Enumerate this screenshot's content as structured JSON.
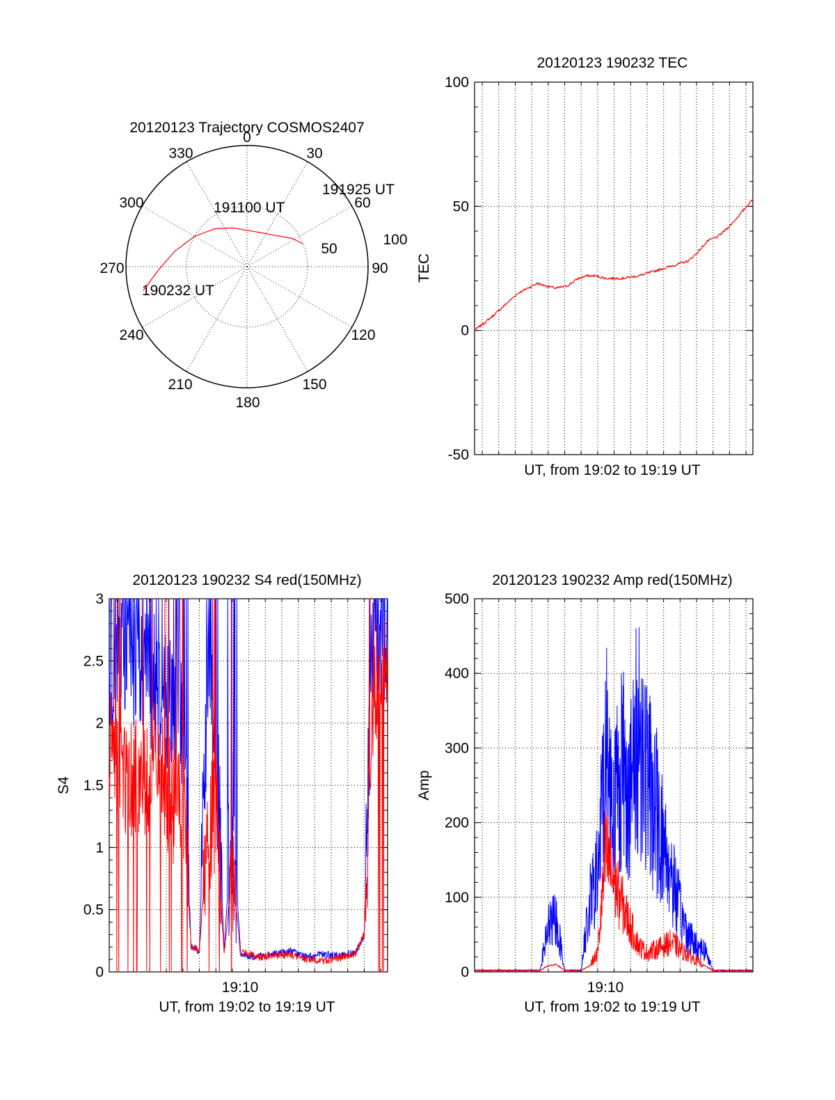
{
  "colors": {
    "red": "#ff0000",
    "blue": "#0000ff",
    "axis": "#000000"
  },
  "chart_data": [
    {
      "id": "trajectory",
      "type": "polar",
      "title": "20120123 Trajectory COSMOS2407",
      "azimuth_labels": [
        "0",
        "30",
        "60",
        "90",
        "120",
        "150",
        "180",
        "210",
        "240",
        "270",
        "300",
        "330"
      ],
      "azimuths_deg": [
        0,
        30,
        60,
        90,
        120,
        150,
        180,
        210,
        240,
        270,
        300,
        330
      ],
      "radial_labels": [
        "50",
        "100"
      ],
      "radial_values": [
        50,
        100
      ],
      "r_max": 100,
      "grid": true,
      "trajectory": {
        "color": "red",
        "points": [
          [
            257,
            88
          ],
          [
            268,
            73
          ],
          [
            282,
            61
          ],
          [
            300,
            50
          ],
          [
            320,
            41
          ],
          [
            340,
            34
          ],
          [
            360,
            30
          ],
          [
            20,
            30
          ],
          [
            40,
            34
          ],
          [
            58,
            44
          ],
          [
            68,
            50
          ]
        ]
      },
      "annotations": [
        {
          "label": "190232 UT",
          "az": 257,
          "r": 88
        },
        {
          "label": "191100 UT",
          "az": 348,
          "r": 56
        },
        {
          "label": "191925 UT",
          "az": 68,
          "r": 50
        }
      ]
    },
    {
      "id": "tec",
      "type": "line",
      "title": "20120123 190232 TEC",
      "xlabel": "UT, from 19:02 to 19:19 UT",
      "ylabel": "TEC",
      "xlim": [
        "19:02:32",
        "19:19:25"
      ],
      "ylim": [
        -50,
        100
      ],
      "yticks": [
        "-50",
        "0",
        "50",
        "100"
      ],
      "ytick_values": [
        -50,
        0,
        50,
        100
      ],
      "grid": true,
      "series": [
        {
          "color": "red",
          "x": [
            "19:02:32",
            "19:03:30",
            "19:04:20",
            "19:05:10",
            "19:05:45",
            "19:06:20",
            "19:06:50",
            "19:07:30",
            "19:08:10",
            "19:08:50",
            "19:09:20",
            "19:09:50",
            "19:10:30",
            "19:11:30",
            "19:12:30",
            "19:13:30",
            "19:14:30",
            "19:15:30",
            "19:16:00",
            "19:16:40",
            "19:17:20",
            "19:18:00",
            "19:18:40",
            "19:19:25"
          ],
          "y": [
            0,
            5,
            10,
            15,
            17,
            19,
            18,
            17,
            18,
            21,
            22,
            22,
            21,
            21,
            22,
            24,
            26,
            28,
            31,
            36,
            38,
            42,
            47,
            53
          ]
        }
      ]
    },
    {
      "id": "s4",
      "type": "line",
      "title": "20120123 190232 S4 red(150MHz)",
      "xlabel": "UT, from 19:02 to 19:19 UT",
      "ylabel": "S4",
      "xlim": [
        "19:02:32",
        "19:19:25"
      ],
      "xticks": [
        "19:10"
      ],
      "ylim": [
        0,
        3
      ],
      "yticks": [
        "0",
        "0.5",
        "1",
        "1.5",
        "2",
        "2.5",
        "3"
      ],
      "ytick_values": [
        0,
        0.5,
        1,
        1.5,
        2,
        2.5,
        3
      ],
      "grid": true,
      "series": [
        {
          "color": "blue",
          "x": [
            "19:02:32",
            "19:03:30",
            "19:04:30",
            "19:05:30",
            "19:06:30",
            "19:07:00",
            "19:07:30",
            "19:08:00",
            "19:08:30",
            "19:09:00",
            "19:09:30",
            "19:10:00",
            "19:10:30",
            "19:11:00",
            "19:11:30",
            "19:12:30",
            "19:13:30",
            "19:14:30",
            "19:15:30",
            "19:16:30",
            "19:17:30",
            "19:18:00",
            "19:18:30",
            "19:19:00",
            "19:19:25"
          ],
          "y": [
            2.5,
            2.7,
            2.4,
            2.3,
            2.1,
            2.0,
            0.2,
            0.15,
            2.3,
            1.9,
            0.15,
            1.3,
            0.15,
            0.12,
            0.12,
            0.14,
            0.17,
            0.12,
            0.14,
            0.13,
            0.16,
            0.3,
            2.8,
            2.7,
            2.8
          ]
        },
        {
          "color": "red",
          "x": [
            "19:02:32",
            "19:03:30",
            "19:04:30",
            "19:05:30",
            "19:06:30",
            "19:07:00",
            "19:07:30",
            "19:08:00",
            "19:08:30",
            "19:09:00",
            "19:09:30",
            "19:10:00",
            "19:10:30",
            "19:11:00",
            "19:11:30",
            "19:12:30",
            "19:13:30",
            "19:14:30",
            "19:15:30",
            "19:16:30",
            "19:17:30",
            "19:18:00",
            "19:18:30",
            "19:19:00",
            "19:19:25"
          ],
          "y": [
            1.8,
            1.6,
            1.5,
            1.7,
            1.3,
            1.4,
            0.2,
            0.18,
            1.1,
            1.3,
            0.15,
            0.8,
            0.15,
            0.15,
            0.12,
            0.13,
            0.14,
            0.1,
            0.09,
            0.11,
            0.15,
            0.3,
            2.2,
            2.5,
            2.3
          ]
        }
      ]
    },
    {
      "id": "amp",
      "type": "line",
      "title": "20120123 190232 Amp red(150MHz)",
      "xlabel": "UT, from 19:02 to 19:19 UT",
      "ylabel": "Amp",
      "xlim": [
        "19:02:32",
        "19:19:25"
      ],
      "xticks": [
        "19:10"
      ],
      "ylim": [
        0,
        500
      ],
      "yticks": [
        "0",
        "100",
        "200",
        "300",
        "400",
        "500"
      ],
      "ytick_values": [
        0,
        100,
        200,
        300,
        400,
        500
      ],
      "grid": true,
      "series": [
        {
          "color": "blue",
          "x": [
            "19:02:32",
            "19:06:30",
            "19:07:00",
            "19:07:30",
            "19:08:00",
            "19:09:00",
            "19:09:30",
            "19:10:00",
            "19:10:30",
            "19:11:00",
            "19:11:30",
            "19:12:00",
            "19:12:30",
            "19:13:00",
            "19:13:30",
            "19:14:00",
            "19:14:30",
            "19:15:00",
            "19:15:30",
            "19:16:00",
            "19:16:30",
            "19:17:00",
            "19:19:25"
          ],
          "y": [
            2,
            2,
            60,
            70,
            2,
            2,
            90,
            130,
            300,
            220,
            280,
            240,
            330,
            260,
            220,
            170,
            130,
            80,
            50,
            35,
            30,
            2,
            2
          ]
        },
        {
          "color": "red",
          "x": [
            "19:02:32",
            "19:06:30",
            "19:07:00",
            "19:07:30",
            "19:08:00",
            "19:09:00",
            "19:09:30",
            "19:10:00",
            "19:10:30",
            "19:11:00",
            "19:11:30",
            "19:12:00",
            "19:12:30",
            "19:13:00",
            "19:13:30",
            "19:14:00",
            "19:14:30",
            "19:15:00",
            "19:15:30",
            "19:16:00",
            "19:16:30",
            "19:17:00",
            "19:19:25"
          ],
          "y": [
            2,
            2,
            8,
            10,
            2,
            2,
            8,
            25,
            160,
            120,
            90,
            60,
            35,
            25,
            30,
            35,
            40,
            30,
            22,
            15,
            8,
            2,
            2
          ]
        }
      ]
    }
  ]
}
